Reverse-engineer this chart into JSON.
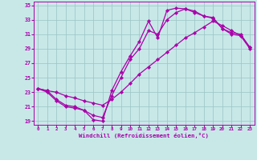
{
  "xlabel": "Windchill (Refroidissement éolien,°C)",
  "bg_color": "#c8e8e8",
  "grid_color": "#a0c8c8",
  "line_color": "#aa00aa",
  "xlim": [
    -0.5,
    23.5
  ],
  "ylim": [
    18.5,
    35.5
  ],
  "yticks": [
    19,
    21,
    23,
    25,
    27,
    29,
    31,
    33,
    35
  ],
  "xticks": [
    0,
    1,
    2,
    3,
    4,
    5,
    6,
    7,
    8,
    9,
    10,
    11,
    12,
    13,
    14,
    15,
    16,
    17,
    18,
    19,
    20,
    21,
    22,
    23
  ],
  "line1_x": [
    0,
    1,
    2,
    3,
    4,
    5,
    6,
    7,
    8,
    9,
    10,
    11,
    12,
    13,
    14,
    15,
    16,
    17,
    18,
    19,
    20,
    21,
    22,
    23
  ],
  "line1_y": [
    23.5,
    23.2,
    22.0,
    21.2,
    21.0,
    20.5,
    19.2,
    19.0,
    23.2,
    25.8,
    28.0,
    30.0,
    32.8,
    30.5,
    34.3,
    34.6,
    34.5,
    34.2,
    33.5,
    33.3,
    31.8,
    31.2,
    31.0,
    29.2
  ],
  "line2_x": [
    0,
    1,
    2,
    3,
    4,
    5,
    6,
    7,
    8,
    9,
    10,
    11,
    12,
    13,
    14,
    15,
    16,
    17,
    18,
    19,
    20,
    21,
    22,
    23
  ],
  "line2_y": [
    23.5,
    23.0,
    21.8,
    21.0,
    20.8,
    20.5,
    19.8,
    19.5,
    22.5,
    25.0,
    27.5,
    29.0,
    31.5,
    31.0,
    33.0,
    34.0,
    34.5,
    34.0,
    33.5,
    33.2,
    31.8,
    31.0,
    30.8,
    29.0
  ],
  "line3_x": [
    0,
    1,
    2,
    3,
    4,
    5,
    6,
    7,
    8,
    9,
    10,
    11,
    12,
    13,
    14,
    15,
    16,
    17,
    18,
    19,
    20,
    21,
    22,
    23
  ],
  "line3_y": [
    23.5,
    23.2,
    23.0,
    22.5,
    22.2,
    21.8,
    21.5,
    21.2,
    22.0,
    23.0,
    24.2,
    25.5,
    26.5,
    27.5,
    28.5,
    29.5,
    30.5,
    31.2,
    32.0,
    32.8,
    32.2,
    31.5,
    30.8,
    29.2
  ]
}
